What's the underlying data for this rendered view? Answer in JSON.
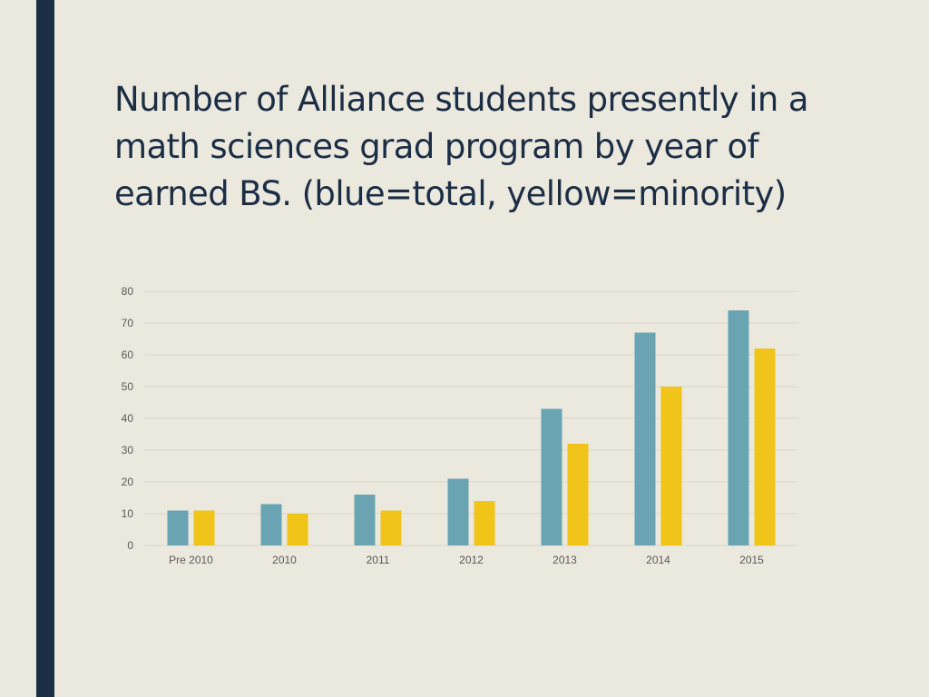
{
  "slide": {
    "title": "Number of Alliance students presently in a math sciences grad program by year of earned BS.  (blue=total, yellow=minority)"
  },
  "chart_data": {
    "type": "bar",
    "title": "",
    "xlabel": "",
    "ylabel": "",
    "categories": [
      "Pre 2010",
      "2010",
      "2011",
      "2012",
      "2013",
      "2014",
      "2015"
    ],
    "series": [
      {
        "values": [
          11,
          13,
          16,
          21,
          43,
          67,
          74
        ],
        "color": "#6aa3b2"
      },
      {
        "values": [
          11,
          10,
          11,
          14,
          32,
          50,
          62
        ],
        "color": "#f0c419"
      }
    ],
    "ylim": [
      0,
      80
    ],
    "yticks": [
      0,
      10,
      20,
      30,
      40,
      50,
      60,
      70,
      80
    ],
    "grid": true,
    "legend": "none"
  },
  "colors": {
    "background": "#ebe8de",
    "accent_bar": "#1c2e45",
    "title_text": "#1c2e45",
    "gridline": "#d9d6cc"
  }
}
